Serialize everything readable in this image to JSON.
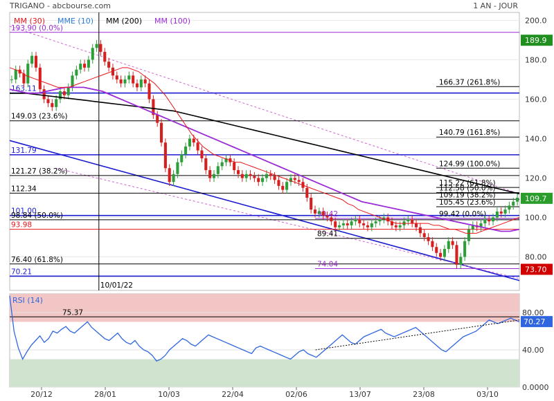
{
  "header": {
    "title": "TRIGANO - abcbourse.com",
    "period": "1 AN - JOUR",
    "legend": [
      {
        "label": "MM (30)",
        "color": "#e8141a"
      },
      {
        "label": "MME (10)",
        "color": "#2a7ad8"
      },
      {
        "label": "MM (200)",
        "color": "#000000"
      },
      {
        "label": "MM (100)",
        "color": "#9a2bd6"
      }
    ]
  },
  "colors": {
    "up": "#2e9e3a",
    "down": "#d62020",
    "fib_blue": "#1a1ad0",
    "fib_black": "#000000",
    "channel": "#d060d0",
    "rsi_line": "#2f66e0"
  },
  "chart_data": [
    {
      "type": "line",
      "name": "price",
      "y_axis": {
        "min": 63,
        "max": 204,
        "ticks": [
          80,
          100,
          120,
          140,
          160,
          180,
          200
        ],
        "labels": [
          "80.00",
          "100.0",
          "120.0",
          "140.0",
          "160.0",
          "180.0",
          "200.0"
        ],
        "side": "right"
      },
      "x_axis": {
        "ticks": [
          "20/12",
          "28/01",
          "10/03",
          "22/04",
          "02/06",
          "13/07",
          "23/08",
          "03/10"
        ]
      },
      "last_price": {
        "value": 109.7,
        "label": "109.7",
        "color": "#2a9d2a"
      },
      "price_badges": [
        {
          "value": 189.9,
          "label": "189.9",
          "color": "#1f8f1f"
        },
        {
          "value": 73.7,
          "label": "73.70",
          "color": "#d00000"
        }
      ],
      "hlines": [
        {
          "value": 193.9,
          "label": "193.90  (0.0%)",
          "color": "#9a2bd6",
          "side": "left"
        },
        {
          "value": 163.11,
          "label": "163.11",
          "color": "#1a1ad0",
          "side": "left"
        },
        {
          "value": 149.03,
          "label": "149.03  (23.6%)",
          "color": "#000000",
          "side": "left"
        },
        {
          "value": 131.79,
          "label": "131.79",
          "color": "#1a1ad0",
          "side": "left"
        },
        {
          "value": 121.27,
          "label": "121.27  (38.2%)",
          "color": "#000000",
          "side": "left"
        },
        {
          "value": 112.34,
          "label": "112.34",
          "color": "#000000",
          "side": "left"
        },
        {
          "value": 101.0,
          "label": "101.00",
          "color": "#1a1ad0",
          "side": "left"
        },
        {
          "value": 98.84,
          "label": "98.84  (50.0%)",
          "color": "#000000",
          "side": "left"
        },
        {
          "value": 93.98,
          "label": "93.98",
          "color": "#e8141a",
          "side": "left"
        },
        {
          "value": 76.4,
          "label": "76.40  (61.8%)",
          "color": "#000000",
          "side": "left"
        },
        {
          "value": 70.21,
          "label": "70.21",
          "color": "#1a1ad0",
          "side": "left"
        },
        {
          "value": 166.37,
          "label": "166.37  (261.8%)",
          "color": "#000000",
          "side": "right"
        },
        {
          "value": 140.79,
          "label": "140.79  (161.8%)",
          "color": "#000000",
          "side": "right"
        },
        {
          "value": 124.99,
          "label": "124.99  (100.0%)",
          "color": "#000000",
          "side": "right"
        },
        {
          "value": 115.22,
          "label": "115.22  (61.8%)",
          "color": "#000000",
          "side": "right"
        },
        {
          "value": 112.58,
          "label": "112.58  (50.0%)",
          "color": "#000000",
          "side": "right"
        },
        {
          "value": 109.19,
          "label": "109.19  (38.2%)",
          "color": "#000000",
          "side": "right"
        },
        {
          "value": 105.45,
          "label": "105.45  (23.6%)",
          "color": "#000000",
          "side": "right"
        },
        {
          "value": 99.42,
          "label": "99.42  (0.0%)",
          "color": "#000000",
          "side": "right"
        },
        {
          "value": 99.42,
          "label": "99.42",
          "color": "#9a2bd6",
          "side": "mid"
        },
        {
          "value": 89.41,
          "label": "89.41",
          "color": "#000000",
          "side": "mid"
        },
        {
          "value": 74.04,
          "label": "74.04",
          "color": "#9a2bd6",
          "side": "mid"
        }
      ],
      "annotation_date": "10/01/22",
      "close_series": [
        170,
        175,
        173,
        168,
        178,
        182,
        176,
        165,
        160,
        158,
        156,
        160,
        164,
        162,
        166,
        172,
        175,
        178,
        176,
        180,
        186,
        188,
        184,
        179,
        176,
        172,
        170,
        168,
        170,
        172,
        168,
        166,
        170,
        168,
        160,
        152,
        148,
        138,
        125,
        118,
        122,
        128,
        132,
        136,
        140,
        138,
        134,
        130,
        124,
        120,
        122,
        126,
        128,
        130,
        128,
        124,
        122,
        120,
        122,
        121,
        120,
        118,
        120,
        122,
        121,
        119,
        116,
        114,
        118,
        120,
        119,
        118,
        115,
        110,
        104,
        102,
        103,
        101,
        100,
        98,
        95,
        96,
        97,
        96,
        98,
        99,
        97,
        96,
        95,
        97,
        98,
        99,
        100,
        98,
        96,
        95,
        96,
        98,
        99,
        97,
        95,
        92,
        90,
        88,
        85,
        82,
        80,
        84,
        88,
        86,
        76,
        80,
        88,
        94,
        96,
        95,
        97,
        99,
        98,
        100,
        103,
        102,
        104,
        106,
        108,
        110
      ],
      "ma30": [
        176,
        175,
        174,
        172,
        171,
        170,
        169,
        168,
        167,
        166,
        166,
        166,
        167,
        168,
        169,
        170,
        171,
        172,
        173,
        174,
        175,
        176,
        176,
        175,
        174,
        172,
        170,
        168,
        165,
        162,
        158,
        154,
        150,
        146,
        142,
        139,
        136,
        134,
        132,
        131,
        130,
        129,
        128,
        128,
        127,
        126,
        125,
        124,
        123,
        122,
        121,
        120,
        119,
        118,
        117,
        116,
        115,
        114,
        113,
        112,
        111,
        110,
        109,
        107,
        106,
        104,
        103,
        102,
        101,
        100,
        99,
        98,
        97,
        97,
        97,
        97,
        97,
        97,
        97,
        96,
        96,
        95,
        94,
        94,
        93,
        92,
        92,
        92,
        93,
        94,
        95,
        96,
        97,
        98,
        99,
        100
      ],
      "ma100": [
        165,
        164,
        163,
        163,
        164,
        165,
        166,
        166,
        166,
        165,
        164,
        162,
        160,
        158,
        156,
        154,
        152,
        150,
        148,
        146,
        144,
        142,
        140,
        138,
        136,
        134,
        132,
        130,
        128,
        126,
        124,
        122,
        120,
        118,
        116,
        114,
        112,
        110,
        108,
        107,
        106,
        105,
        104,
        103,
        102,
        101,
        100,
        99,
        98,
        97,
        96,
        95,
        94,
        93,
        93,
        94
      ],
      "ma200": [
        163,
        163,
        162,
        161,
        160,
        159,
        158,
        157,
        156,
        155,
        154,
        152,
        150,
        148,
        146,
        144,
        142,
        140,
        138,
        136,
        134,
        132,
        130,
        128,
        126,
        124,
        122,
        120,
        118,
        116,
        114,
        112
      ],
      "channels": [
        {
          "from": [
            0,
            197
          ],
          "to": [
            1,
            112
          ]
        },
        {
          "from": [
            0,
            139
          ],
          "to": [
            1,
            68
          ]
        },
        {
          "from": [
            0.09,
            125
          ],
          "to": [
            1,
            69
          ]
        }
      ]
    },
    {
      "type": "line",
      "name": "rsi",
      "label": "RSI (14)",
      "y_axis": {
        "min": 0,
        "max": 100,
        "ticks": [
          0,
          40,
          80
        ],
        "labels": [
          "0.0000",
          "40.00",
          "80.00"
        ],
        "side": "right"
      },
      "last_value": {
        "value": 70.27,
        "label": "70.27"
      },
      "zones": {
        "overbought": 70,
        "oversold": 30
      },
      "hlines": [
        {
          "value": 75.37,
          "label": "75.37"
        }
      ],
      "values": [
        98,
        60,
        42,
        30,
        38,
        45,
        50,
        55,
        48,
        52,
        60,
        58,
        62,
        65,
        60,
        58,
        62,
        66,
        70,
        64,
        60,
        56,
        52,
        50,
        54,
        58,
        52,
        48,
        46,
        50,
        44,
        40,
        38,
        34,
        28,
        30,
        34,
        40,
        44,
        48,
        52,
        50,
        46,
        44,
        48,
        52,
        56,
        54,
        52,
        50,
        48,
        46,
        44,
        42,
        40,
        38,
        36,
        42,
        44,
        42,
        40,
        38,
        36,
        34,
        32,
        30,
        34,
        38,
        40,
        36,
        34,
        32,
        36,
        40,
        44,
        48,
        52,
        56,
        52,
        48,
        46,
        50,
        54,
        56,
        58,
        60,
        62,
        58,
        56,
        54,
        56,
        58,
        60,
        62,
        64,
        60,
        56,
        52,
        48,
        44,
        40,
        38,
        42,
        46,
        50,
        54,
        56,
        58,
        60,
        64,
        68,
        72,
        70,
        68,
        70,
        72,
        74,
        72,
        70
      ]
    }
  ]
}
